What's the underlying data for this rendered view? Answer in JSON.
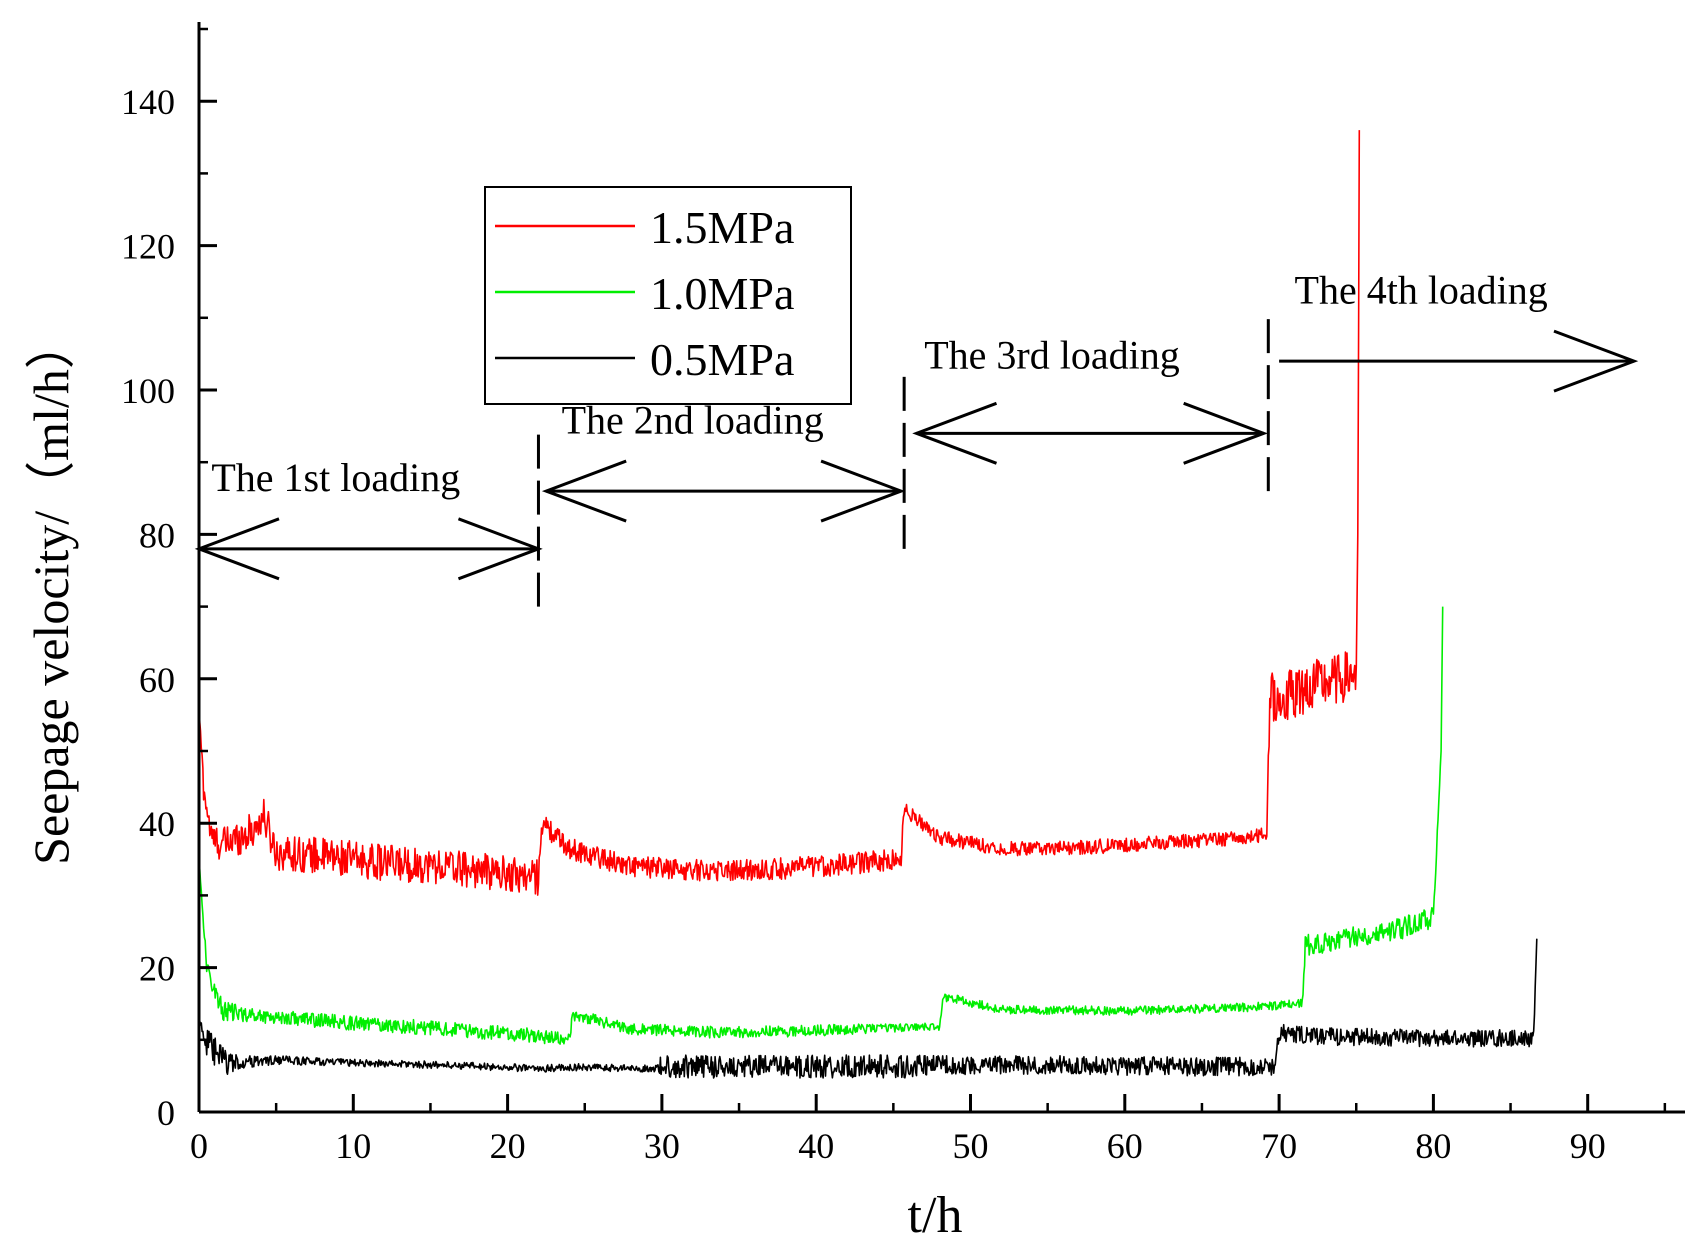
{
  "chart_data": {
    "type": "line",
    "title": "",
    "xlabel": "t/h",
    "ylabel": "Seepage velocity/（ml/h）",
    "xlim": [
      0,
      96
    ],
    "ylim": [
      0,
      150
    ],
    "xticks": [
      0,
      10,
      20,
      30,
      40,
      50,
      60,
      70,
      80,
      90
    ],
    "yticks": [
      0,
      20,
      40,
      60,
      80,
      100,
      120,
      140
    ],
    "legend": {
      "position": "upper-left-center"
    },
    "series": [
      {
        "name": "1.5MPa",
        "color": "#ff0000",
        "x": [
          0,
          0.3,
          0.8,
          1.5,
          2.5,
          3.5,
          4.2,
          5,
          8,
          12,
          16,
          20,
          22,
          22.2,
          24,
          28,
          32,
          36,
          40,
          45.5,
          45.7,
          48,
          52,
          56,
          60,
          64,
          68,
          69.2,
          69.4,
          70,
          72,
          74,
          75,
          75.1,
          75.2
        ],
        "y": [
          56,
          45,
          38,
          37,
          38,
          39,
          41,
          36,
          35.5,
          34.5,
          34,
          33,
          32.5,
          40,
          36.5,
          34,
          33.5,
          33.5,
          34,
          35,
          42,
          38,
          36.5,
          36.5,
          37,
          37.5,
          38,
          38.5,
          58,
          57,
          59,
          60,
          61,
          80,
          136
        ],
        "noise": [
          0,
          2,
          2,
          2.5,
          2.5,
          2.5,
          2.5,
          2.5,
          2.5,
          2.5,
          2.5,
          2.5,
          2.5,
          1.5,
          1.5,
          1.5,
          1.5,
          1.5,
          1.5,
          1.5,
          1,
          1,
          1,
          1,
          1,
          1,
          1,
          1,
          3.5,
          3.5,
          3.5,
          3.5,
          3.5,
          0,
          0
        ]
      },
      {
        "name": "1.0MPa",
        "color": "#00ee00",
        "x": [
          0,
          0.5,
          1.5,
          3,
          6,
          10,
          16,
          22,
          24,
          24.2,
          28,
          34,
          40,
          47,
          48,
          48.2,
          52,
          60,
          68,
          71.5,
          71.7,
          74,
          78,
          80,
          80.5,
          80.6
        ],
        "y": [
          35,
          20,
          14,
          13.5,
          13,
          12.3,
          11.5,
          10.5,
          10,
          13.5,
          11.5,
          11,
          11.3,
          11.8,
          11.8,
          16,
          14.2,
          14,
          14.5,
          15,
          23,
          24,
          25.5,
          27,
          50,
          70
        ],
        "noise": [
          0,
          1,
          1.5,
          1,
          1,
          1,
          1,
          1,
          0.8,
          0.8,
          0.8,
          0.8,
          0.8,
          0.5,
          0.5,
          0.6,
          0.6,
          0.6,
          0.6,
          0.6,
          1.5,
          1.5,
          1.5,
          1.5,
          0,
          0
        ]
      },
      {
        "name": "0.5MPa",
        "color": "#000000",
        "x": [
          0,
          0.5,
          1.5,
          2.5,
          5,
          10,
          16,
          22,
          24,
          29.5,
          30,
          34,
          40,
          46,
          48,
          56,
          64,
          69.7,
          70,
          72,
          80,
          86.5,
          86.7
        ],
        "y": [
          13,
          9.5,
          7,
          6.8,
          7.2,
          6.8,
          6.5,
          6,
          6.2,
          6,
          6.3,
          6.3,
          6.3,
          6.3,
          6.5,
          6.5,
          6.3,
          6.3,
          11,
          10.5,
          10.2,
          10.2,
          24
        ],
        "noise": [
          0,
          2,
          2.5,
          1,
          0.6,
          0.5,
          0.5,
          0.5,
          0.5,
          0.5,
          1.6,
          1.6,
          1.6,
          1.6,
          1.3,
          1.3,
          1.3,
          1.3,
          1.2,
          1.2,
          1.2,
          1.2,
          0
        ]
      }
    ],
    "annotations": [
      {
        "text": "The 1st loading",
        "label_x": 0.8,
        "label_y": 86,
        "arrow_from": 0,
        "arrow_to": 22,
        "arrow_y": 78
      },
      {
        "text": "The 2nd loading",
        "label_x": 23.5,
        "label_y": 94,
        "arrow_from": 22.5,
        "arrow_to": 45.5,
        "arrow_y": 86
      },
      {
        "text": "The 3rd loading",
        "label_x": 47,
        "label_y": 103,
        "arrow_from": 46.5,
        "arrow_to": 69,
        "arrow_y": 94
      },
      {
        "text": "The 4th loading",
        "label_x": 71,
        "label_y": 112,
        "arrow_from": 70,
        "arrow_to": 93,
        "arrow_y": 104
      }
    ],
    "dividers": [
      {
        "x": 22,
        "y_from": 70,
        "y_to": 94
      },
      {
        "x": 45.7,
        "y_from": 78,
        "y_to": 102
      },
      {
        "x": 69.3,
        "y_from": 86,
        "y_to": 110
      }
    ]
  }
}
